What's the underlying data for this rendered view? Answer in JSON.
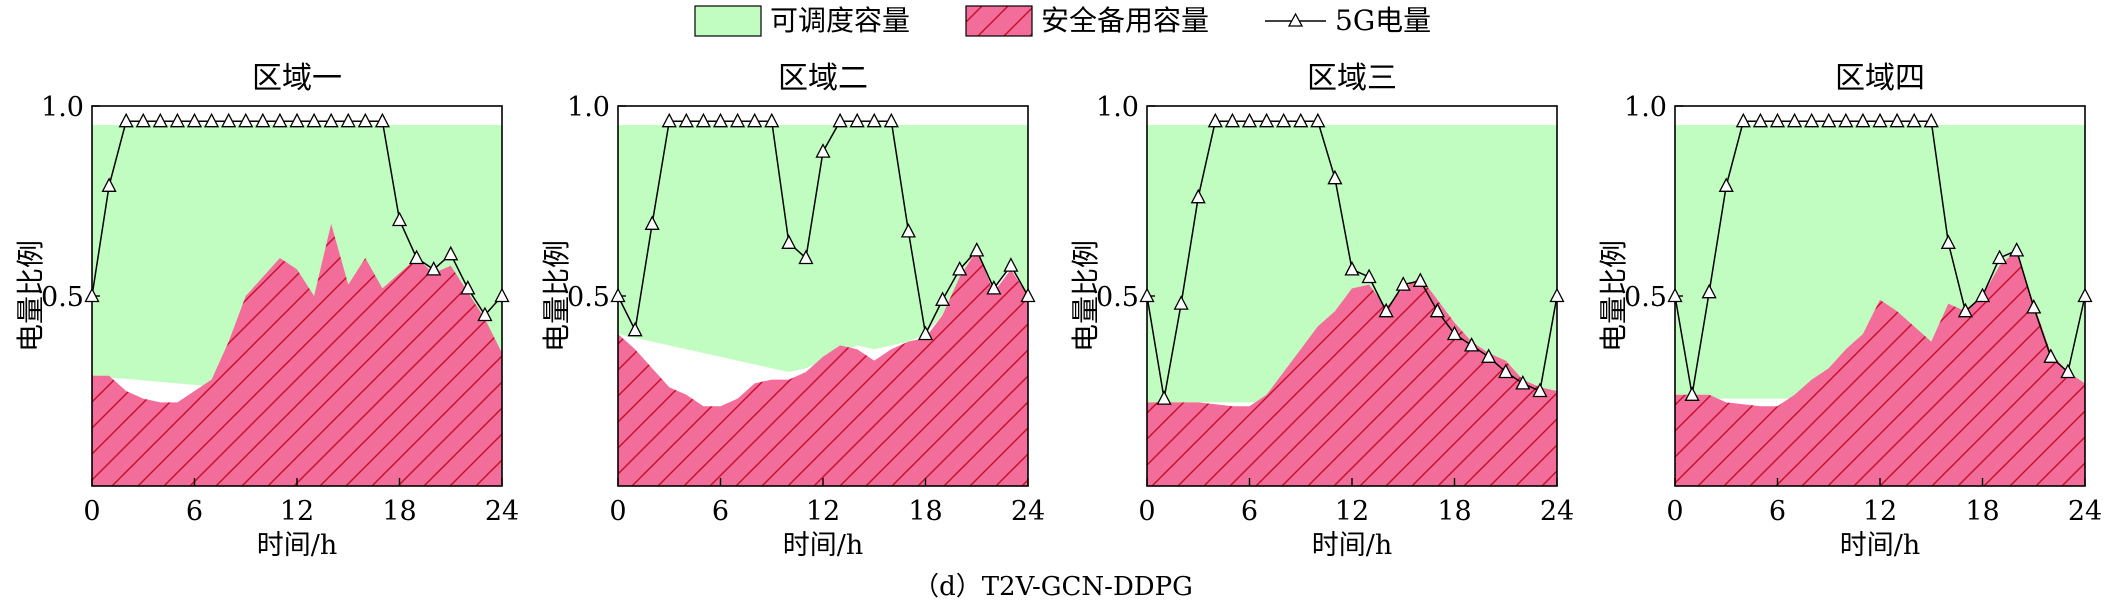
{
  "legend": {
    "items": [
      {
        "key": "dispatchable",
        "label": "可调度容量",
        "color": "#c1fcc1",
        "style": "fill"
      },
      {
        "key": "safety",
        "label": "安全备用容量",
        "color": "#f26d9a",
        "hatch": "#c8102e",
        "style": "hatched-fill"
      },
      {
        "key": "soc",
        "label": "5G电量",
        "color": "#000000",
        "style": "line-triangle"
      }
    ]
  },
  "caption": "（d）T2V-GCN-DDPG",
  "chart_data": [
    {
      "type": "area",
      "title": "区域一",
      "xlabel": "时间/h",
      "ylabel": "电量比例",
      "xlim": [
        0,
        24
      ],
      "ylim": [
        0,
        1.0
      ],
      "xticks": [
        0,
        6,
        12,
        18,
        24
      ],
      "yticks": [
        0.5,
        1.0
      ],
      "ytick_labels": [
        "0.5",
        "1.0"
      ],
      "dispatchable_upper": 0.95,
      "x": [
        0,
        1,
        2,
        3,
        4,
        5,
        6,
        7,
        8,
        9,
        10,
        11,
        12,
        13,
        14,
        15,
        16,
        17,
        18,
        19,
        20,
        21,
        22,
        23,
        24
      ],
      "dispatchable_lower": [
        0.29,
        0.286,
        0.282,
        0.278,
        0.274,
        0.27,
        0.266,
        0.262,
        0.258,
        0.254,
        0.25,
        0.246,
        0.242,
        0.238,
        0.234,
        0.23,
        0.226,
        0.222,
        0.218,
        0.214,
        0.21,
        0.206,
        0.202,
        0.198,
        0.194
      ],
      "safety": [
        0.29,
        0.29,
        0.25,
        0.23,
        0.22,
        0.22,
        0.25,
        0.28,
        0.38,
        0.5,
        0.55,
        0.6,
        0.57,
        0.5,
        0.69,
        0.53,
        0.6,
        0.52,
        0.56,
        0.6,
        0.56,
        0.58,
        0.51,
        0.44,
        0.35
      ],
      "soc": [
        0.5,
        0.79,
        0.96,
        0.96,
        0.96,
        0.96,
        0.96,
        0.96,
        0.96,
        0.96,
        0.96,
        0.96,
        0.96,
        0.96,
        0.96,
        0.96,
        0.96,
        0.96,
        0.7,
        0.6,
        0.57,
        0.61,
        0.52,
        0.45,
        0.5
      ]
    },
    {
      "type": "area",
      "title": "区域二",
      "xlabel": "时间/h",
      "ylabel": "电量比例",
      "xlim": [
        0,
        24
      ],
      "ylim": [
        0,
        1.0
      ],
      "xticks": [
        0,
        6,
        12,
        18,
        24
      ],
      "yticks": [
        0.5,
        1.0
      ],
      "ytick_labels": [
        "0.5",
        "1.0"
      ],
      "dispatchable_upper": 0.95,
      "x": [
        0,
        1,
        2,
        3,
        4,
        5,
        6,
        7,
        8,
        9,
        10,
        11,
        12,
        13,
        14,
        15,
        16,
        17,
        18,
        19,
        20,
        21,
        22,
        23,
        24
      ],
      "dispatchable_lower": [
        0.4,
        0.39,
        0.38,
        0.37,
        0.36,
        0.35,
        0.34,
        0.33,
        0.32,
        0.31,
        0.3,
        0.31,
        0.33,
        0.35,
        0.37,
        0.36,
        0.37,
        0.38,
        0.4,
        0.45,
        0.52,
        0.6,
        0.52,
        0.58,
        0.5
      ],
      "safety": [
        0.4,
        0.36,
        0.31,
        0.26,
        0.24,
        0.21,
        0.21,
        0.23,
        0.27,
        0.28,
        0.28,
        0.3,
        0.34,
        0.37,
        0.36,
        0.33,
        0.36,
        0.38,
        0.39,
        0.45,
        0.55,
        0.62,
        0.51,
        0.57,
        0.5
      ],
      "soc": [
        0.5,
        0.41,
        0.69,
        0.96,
        0.96,
        0.96,
        0.96,
        0.96,
        0.96,
        0.96,
        0.64,
        0.6,
        0.88,
        0.96,
        0.96,
        0.96,
        0.96,
        0.67,
        0.4,
        0.49,
        0.57,
        0.62,
        0.52,
        0.58,
        0.5
      ]
    },
    {
      "type": "area",
      "title": "区域三",
      "xlabel": "时间/h",
      "ylabel": "电量比例",
      "xlim": [
        0,
        24
      ],
      "ylim": [
        0,
        1.0
      ],
      "xticks": [
        0,
        6,
        12,
        18,
        24
      ],
      "yticks": [
        0.5,
        1.0
      ],
      "ytick_labels": [
        "0.5",
        "1.0"
      ],
      "dispatchable_upper": 0.95,
      "x": [
        0,
        1,
        2,
        3,
        4,
        5,
        6,
        7,
        8,
        9,
        10,
        11,
        12,
        13,
        14,
        15,
        16,
        17,
        18,
        19,
        20,
        21,
        22,
        23,
        24
      ],
      "dispatchable_lower": [
        0.22,
        0.22,
        0.22,
        0.22,
        0.22,
        0.22,
        0.22,
        0.22,
        0.22,
        0.22,
        0.22,
        0.22,
        0.22,
        0.22,
        0.22,
        0.22,
        0.22,
        0.22,
        0.22,
        0.22,
        0.22,
        0.22,
        0.22,
        0.22,
        0.22
      ],
      "safety": [
        0.22,
        0.22,
        0.22,
        0.22,
        0.215,
        0.21,
        0.21,
        0.24,
        0.3,
        0.36,
        0.42,
        0.46,
        0.52,
        0.53,
        0.47,
        0.52,
        0.55,
        0.49,
        0.43,
        0.38,
        0.35,
        0.33,
        0.28,
        0.26,
        0.25
      ],
      "soc": [
        0.5,
        0.23,
        0.48,
        0.76,
        0.96,
        0.96,
        0.96,
        0.96,
        0.96,
        0.96,
        0.96,
        0.81,
        0.57,
        0.55,
        0.46,
        0.53,
        0.54,
        0.46,
        0.4,
        0.37,
        0.34,
        0.3,
        0.27,
        0.25,
        0.5
      ]
    },
    {
      "type": "area",
      "title": "区域四",
      "xlabel": "时间/h",
      "ylabel": "电量比例",
      "xlim": [
        0,
        24
      ],
      "ylim": [
        0,
        1.0
      ],
      "xticks": [
        0,
        6,
        12,
        18,
        24
      ],
      "yticks": [
        0.5,
        1.0
      ],
      "ytick_labels": [
        "0.5",
        "1.0"
      ],
      "dispatchable_upper": 0.95,
      "x": [
        0,
        1,
        2,
        3,
        4,
        5,
        6,
        7,
        8,
        9,
        10,
        11,
        12,
        13,
        14,
        15,
        16,
        17,
        18,
        19,
        20,
        21,
        22,
        23,
        24
      ],
      "dispatchable_lower": [
        0.23,
        0.23,
        0.23,
        0.23,
        0.23,
        0.23,
        0.23,
        0.23,
        0.23,
        0.23,
        0.23,
        0.23,
        0.23,
        0.23,
        0.23,
        0.23,
        0.23,
        0.23,
        0.23,
        0.23,
        0.23,
        0.23,
        0.23,
        0.23,
        0.23
      ],
      "safety": [
        0.24,
        0.24,
        0.24,
        0.22,
        0.215,
        0.21,
        0.21,
        0.24,
        0.28,
        0.31,
        0.36,
        0.4,
        0.49,
        0.46,
        0.42,
        0.38,
        0.48,
        0.46,
        0.5,
        0.58,
        0.62,
        0.48,
        0.35,
        0.3,
        0.27
      ],
      "soc": [
        0.5,
        0.24,
        0.51,
        0.79,
        0.96,
        0.96,
        0.96,
        0.96,
        0.96,
        0.96,
        0.96,
        0.96,
        0.96,
        0.96,
        0.96,
        0.96,
        0.64,
        0.46,
        0.5,
        0.6,
        0.62,
        0.47,
        0.34,
        0.3,
        0.5
      ]
    }
  ]
}
